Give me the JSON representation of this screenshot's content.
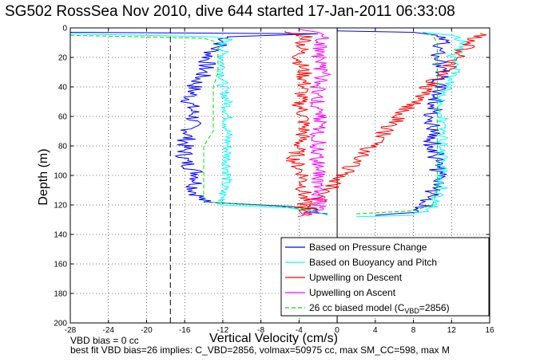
{
  "chart_data": {
    "type": "line",
    "title": "SG502 RossSea Nov 2010, dive 644 started 17-Jan-2011 06:33:08",
    "xlabel": "Vertical Velocity (cm/s)",
    "ylabel": "Depth (m)",
    "xlim": [
      -28,
      16
    ],
    "ylim": [
      0,
      200
    ],
    "y_reversed": true,
    "x_ticks": [
      -28,
      -24,
      -20,
      -16,
      -12,
      -8,
      -4,
      0,
      4,
      8,
      12,
      16
    ],
    "y_ticks": [
      0,
      20,
      40,
      60,
      80,
      100,
      120,
      140,
      160,
      180,
      200
    ],
    "grid": true,
    "legend_position": "bottom-right",
    "reference_lines": [
      {
        "x": -17.5,
        "style": "dashed",
        "color": "#000000"
      },
      {
        "x": 0,
        "style": "solid",
        "color": "#000000"
      }
    ],
    "series": [
      {
        "name": "Based on Pressure Change",
        "color": "#0000ff",
        "style": "solid",
        "descent": [
          [
            -28,
            3
          ],
          [
            -2,
            4
          ],
          [
            -11.5,
            6
          ],
          [
            -12,
            10
          ],
          [
            -13,
            15
          ],
          [
            -13.5,
            20
          ],
          [
            -14,
            30
          ],
          [
            -15,
            40
          ],
          [
            -15.5,
            50
          ],
          [
            -15,
            60
          ],
          [
            -15.5,
            70
          ],
          [
            -16,
            80
          ],
          [
            -16,
            90
          ],
          [
            -14.5,
            100
          ],
          [
            -15,
            110
          ],
          [
            -14,
            118
          ],
          [
            -5,
            121
          ],
          [
            -2,
            123
          ],
          [
            -3,
            125
          ],
          [
            -1,
            126
          ]
        ],
        "ascent": [
          [
            4,
            127
          ],
          [
            8,
            125
          ],
          [
            9.5,
            120
          ],
          [
            10,
            110
          ],
          [
            10.5,
            100
          ],
          [
            10.5,
            90
          ],
          [
            10,
            80
          ],
          [
            10,
            70
          ],
          [
            10,
            60
          ],
          [
            10.5,
            50
          ],
          [
            10.5,
            40
          ],
          [
            11,
            30
          ],
          [
            10.5,
            20
          ],
          [
            11,
            10
          ],
          [
            10.5,
            5
          ],
          [
            8,
            3
          ],
          [
            0,
            2
          ]
        ]
      },
      {
        "name": "Based on Buoyancy and Pitch",
        "color": "#00ffff",
        "style": "solid",
        "descent": [
          [
            -28,
            4
          ],
          [
            -13,
            6
          ],
          [
            -11,
            8
          ],
          [
            -12,
            10
          ],
          [
            -12,
            20
          ],
          [
            -12,
            30
          ],
          [
            -12,
            40
          ],
          [
            -11.5,
            50
          ],
          [
            -11.5,
            60
          ],
          [
            -11.5,
            70
          ],
          [
            -11.5,
            80
          ],
          [
            -11.5,
            90
          ],
          [
            -11.5,
            100
          ],
          [
            -12,
            110
          ],
          [
            -12,
            120
          ],
          [
            -5,
            122
          ],
          [
            -2,
            125
          ],
          [
            -1,
            127
          ]
        ],
        "ascent": [
          [
            2,
            128
          ],
          [
            8,
            127
          ],
          [
            10,
            122
          ],
          [
            10.5,
            115
          ],
          [
            11,
            110
          ],
          [
            11,
            100
          ],
          [
            11,
            90
          ],
          [
            11,
            80
          ],
          [
            11,
            70
          ],
          [
            11,
            60
          ],
          [
            11,
            50
          ],
          [
            11.5,
            40
          ],
          [
            12.5,
            30
          ],
          [
            12,
            20
          ],
          [
            13.5,
            10
          ],
          [
            12,
            5
          ],
          [
            9,
            3
          ]
        ]
      },
      {
        "name": "Upwelling on Descent",
        "color": "#ff0000",
        "style": "solid",
        "descent": [
          [
            -6,
            2
          ],
          [
            -3,
            6
          ],
          [
            -3.5,
            10
          ],
          [
            -4,
            20
          ],
          [
            -3.5,
            30
          ],
          [
            -3.5,
            40
          ],
          [
            -4,
            50
          ],
          [
            -3.5,
            60
          ],
          [
            -3.5,
            70
          ],
          [
            -4,
            80
          ],
          [
            -4.5,
            90
          ],
          [
            -3.5,
            100
          ],
          [
            -3.5,
            110
          ],
          [
            -3.5,
            120
          ],
          [
            -4,
            124
          ],
          [
            -3.5,
            127
          ],
          [
            15,
            4
          ]
        ]
      },
      {
        "name": "Upwelling on Ascent",
        "color": "#ff00ff",
        "style": "solid",
        "ascent": [
          [
            -3.5,
            128
          ],
          [
            -2,
            124
          ],
          [
            -2,
            120
          ],
          [
            -2,
            110
          ],
          [
            -2,
            100
          ],
          [
            -2,
            90
          ],
          [
            -2,
            80
          ],
          [
            -2,
            70
          ],
          [
            -2,
            60
          ],
          [
            -2,
            50
          ],
          [
            -2,
            40
          ],
          [
            -1.5,
            30
          ],
          [
            -2,
            20
          ],
          [
            -1.5,
            10
          ],
          [
            -2,
            3
          ],
          [
            -4,
            1
          ]
        ]
      },
      {
        "name": "26 cc biased model (C_VBD=2856)",
        "color": "#00dd00",
        "style": "dashed",
        "descent": [
          [
            -28,
            5
          ],
          [
            -14,
            7
          ],
          [
            -12.5,
            10
          ],
          [
            -12.5,
            20
          ],
          [
            -12.5,
            30
          ],
          [
            -13,
            40
          ],
          [
            -13,
            50
          ],
          [
            -13,
            60
          ],
          [
            -13,
            70
          ],
          [
            -14,
            80
          ],
          [
            -14,
            90
          ],
          [
            -14,
            100
          ],
          [
            -14,
            110
          ],
          [
            -14,
            118
          ],
          [
            -6,
            121
          ],
          [
            -2,
            124
          ]
        ],
        "ascent": [
          [
            2,
            126
          ],
          [
            8,
            124
          ],
          [
            10,
            120
          ],
          [
            10.5,
            110
          ],
          [
            10.5,
            100
          ],
          [
            10.5,
            90
          ],
          [
            10.5,
            80
          ],
          [
            10.5,
            70
          ],
          [
            10.5,
            60
          ],
          [
            10.5,
            50
          ],
          [
            10.5,
            40
          ],
          [
            10.5,
            30
          ],
          [
            10.5,
            20
          ],
          [
            10.5,
            10
          ],
          [
            10,
            5
          ],
          [
            9,
            3
          ]
        ]
      }
    ]
  },
  "legend": {
    "items": [
      {
        "label": "Based on Pressure Change",
        "color": "#0000ff",
        "dash": false
      },
      {
        "label": "Based on Buoyancy and Pitch",
        "color": "#00ffff",
        "dash": false
      },
      {
        "label": "Upwelling on Descent",
        "color": "#ff0000",
        "dash": false
      },
      {
        "label": "Upwelling on Ascent",
        "color": "#ff00ff",
        "dash": false
      },
      {
        "label": "26 cc biased model (C",
        "subscript": "VBD",
        "suffix": "=2856)",
        "color": "#00dd00",
        "dash": true
      }
    ]
  },
  "footer": {
    "line1": "VBD bias = 0 cc",
    "line2": "best fit VBD bias=26 implies: C_VBD=2856, volmax=50975 cc, max SM_CC=598, max M"
  }
}
